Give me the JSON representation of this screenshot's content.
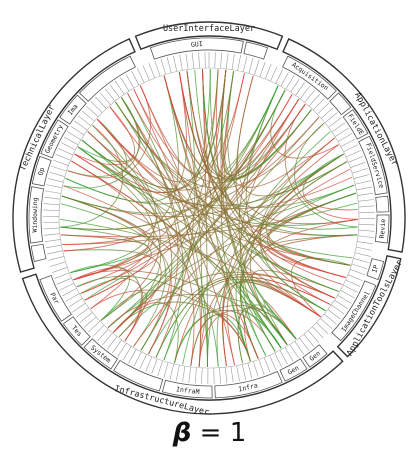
{
  "figure": {
    "caption_symbol": "β",
    "caption_rest": " = 1",
    "colors": {
      "edge_source": "#2ea52e",
      "edge_target": "#e0403a",
      "ring_stroke": "#333333"
    },
    "layers": [
      {
        "name": "UserInterfaceLayer",
        "start": 338,
        "end": 22,
        "modules": [
          {
            "name": "GUI",
            "start": 341,
            "end": 11
          },
          {
            "name": "",
            "start": 12,
            "end": 19
          }
        ]
      },
      {
        "name": "ApplicationLayer",
        "start": 24,
        "end": 100,
        "modules": [
          {
            "name": "Acquisition",
            "start": 26,
            "end": 45
          },
          {
            "name": "",
            "start": 46,
            "end": 52
          },
          {
            "name": "FieldE",
            "start": 53,
            "end": 62
          },
          {
            "name": "FieldService",
            "start": 63,
            "end": 82
          },
          {
            "name": "",
            "start": 83,
            "end": 88
          },
          {
            "name": "Revie",
            "start": 89,
            "end": 98
          }
        ]
      },
      {
        "name": "ApplicationToolsLayer",
        "start": 102,
        "end": 135,
        "modules": [
          {
            "name": "IP",
            "start": 104,
            "end": 110
          },
          {
            "name": "ImageChannel",
            "start": 112,
            "end": 133
          }
        ]
      },
      {
        "name": "InfrastructureLayer",
        "start": 137,
        "end": 252,
        "modules": [
          {
            "name": "Gen",
            "start": 139,
            "end": 146
          },
          {
            "name": "Gen",
            "start": 147,
            "end": 155
          },
          {
            "name": "Infra",
            "start": 156,
            "end": 178
          },
          {
            "name": "InfraM",
            "start": 179,
            "end": 195
          },
          {
            "name": "",
            "start": 196,
            "end": 212
          },
          {
            "name": "System",
            "start": 213,
            "end": 224
          },
          {
            "name": "Tes",
            "start": 225,
            "end": 234
          },
          {
            "name": "Par",
            "start": 235,
            "end": 250
          }
        ]
      },
      {
        "name": "TechnicalLayer",
        "start": 254,
        "end": 336,
        "modules": [
          {
            "name": "",
            "start": 256,
            "end": 261
          },
          {
            "name": "Windowing",
            "start": 262,
            "end": 280
          },
          {
            "name": "Op",
            "start": 281,
            "end": 290
          },
          {
            "name": "Geometry",
            "start": 291,
            "end": 303
          },
          {
            "name": "Ima",
            "start": 304,
            "end": 313
          },
          {
            "name": "",
            "start": 314,
            "end": 334
          }
        ]
      }
    ]
  }
}
